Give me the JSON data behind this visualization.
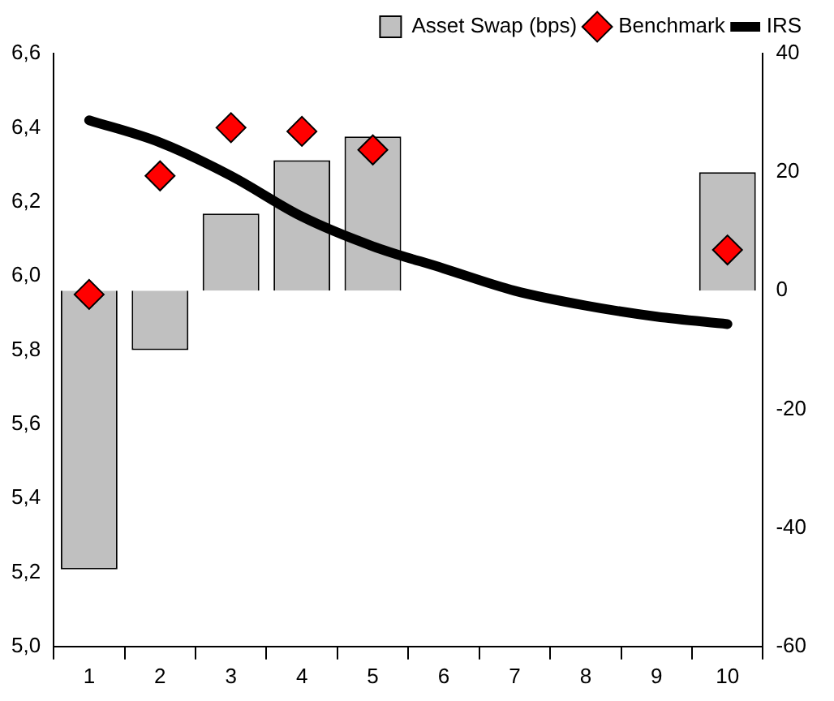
{
  "chart_data": {
    "type": "bar",
    "categories": [
      "1",
      "2",
      "3",
      "4",
      "5",
      "6",
      "7",
      "8",
      "9",
      "10"
    ],
    "series": [
      {
        "name": "Asset Swap (bps)",
        "axis": "y2",
        "color": "#c0c0c0",
        "values": [
          -47,
          -10,
          13,
          22,
          26,
          null,
          null,
          null,
          null,
          20
        ]
      },
      {
        "name": "Benchmark",
        "type": "scatter",
        "marker": "diamond",
        "color": "#ff0000",
        "values": [
          5.95,
          6.27,
          6.4,
          6.39,
          6.34,
          null,
          null,
          null,
          null,
          6.07
        ]
      },
      {
        "name": "IRS",
        "type": "line",
        "color": "#000000",
        "values": [
          6.42,
          6.36,
          6.27,
          6.16,
          6.08,
          6.02,
          5.96,
          5.92,
          5.89,
          5.87
        ]
      }
    ],
    "ylim": [
      5.0,
      6.6
    ],
    "yticks": [
      {
        "value": 5.0,
        "label": "5,0"
      },
      {
        "value": 5.2,
        "label": "5,2"
      },
      {
        "value": 5.4,
        "label": "5,4"
      },
      {
        "value": 5.6,
        "label": "5,6"
      },
      {
        "value": 5.8,
        "label": "5,8"
      },
      {
        "value": 6.0,
        "label": "6,0"
      },
      {
        "value": 6.2,
        "label": "6,2"
      },
      {
        "value": 6.4,
        "label": "6,4"
      },
      {
        "value": 6.6,
        "label": "6,6"
      }
    ],
    "y2lim": [
      -60,
      40
    ],
    "y2ticks": [
      -60,
      -40,
      -20,
      0,
      20,
      40
    ],
    "grid": false,
    "legend": "top right"
  }
}
